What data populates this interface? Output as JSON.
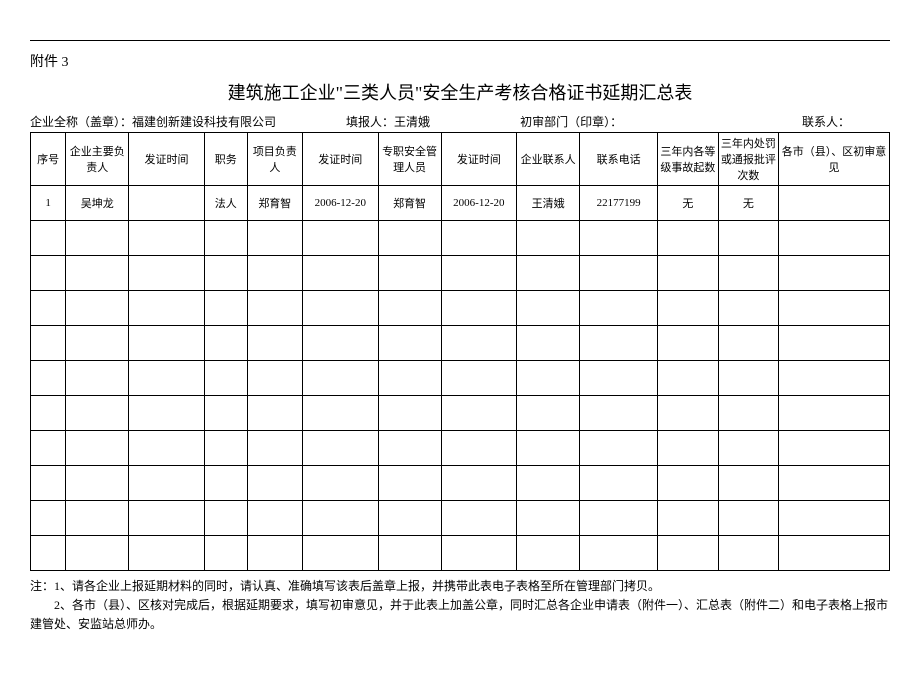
{
  "attachment_label": "附件 3",
  "title": "建筑施工企业\"三类人员\"安全生产考核合格证书延期汇总表",
  "info_line": {
    "company_label": "企业全称（盖章）：",
    "company_value": "福建创新建设科技有限公司",
    "filler_label": "填报人：",
    "filler_value": "王清娥",
    "dept_label": "初审部门（印章）：",
    "contact_label": "联系人："
  },
  "headers": {
    "seq": "序号",
    "main_person": "企业主要负责人",
    "issue_time1": "发证时间",
    "job": "职务",
    "proj_person": "项目负责人",
    "issue_time2": "发证时间",
    "safety_person": "专职安全管理人员",
    "issue_time3": "发证时间",
    "contact_person": "企业联系人",
    "phone": "联系电话",
    "accident_count": "三年内各等级事故起数",
    "penalty_count": "三年内处罚或通报批评次数",
    "opinion": "各市（县）、区初审意见"
  },
  "rows": [
    {
      "seq": "1",
      "main_person": "吴坤龙",
      "issue_time1": "",
      "job": "法人",
      "proj_person": "郑育智",
      "issue_time2": "2006-12-20",
      "safety_person": "郑育智",
      "issue_time3": "2006-12-20",
      "contact_person": "王清娥",
      "phone": "22177199",
      "accident_count": "无",
      "penalty_count": "无",
      "opinion": ""
    }
  ],
  "empty_rows": 10,
  "notes": {
    "line1": "注：1、请各企业上报延期材料的同时，请认真、准确填写该表后盖章上报，并携带此表电子表格至所在管理部门拷贝。",
    "line2": "2、各市（县）、区核对完成后，根据延期要求，填写初审意见，并于此表上加盖公章，同时汇总各企业申请表（附件一）、汇总表（附件二）和电子表格上报市建管处、安监站总师办。"
  }
}
